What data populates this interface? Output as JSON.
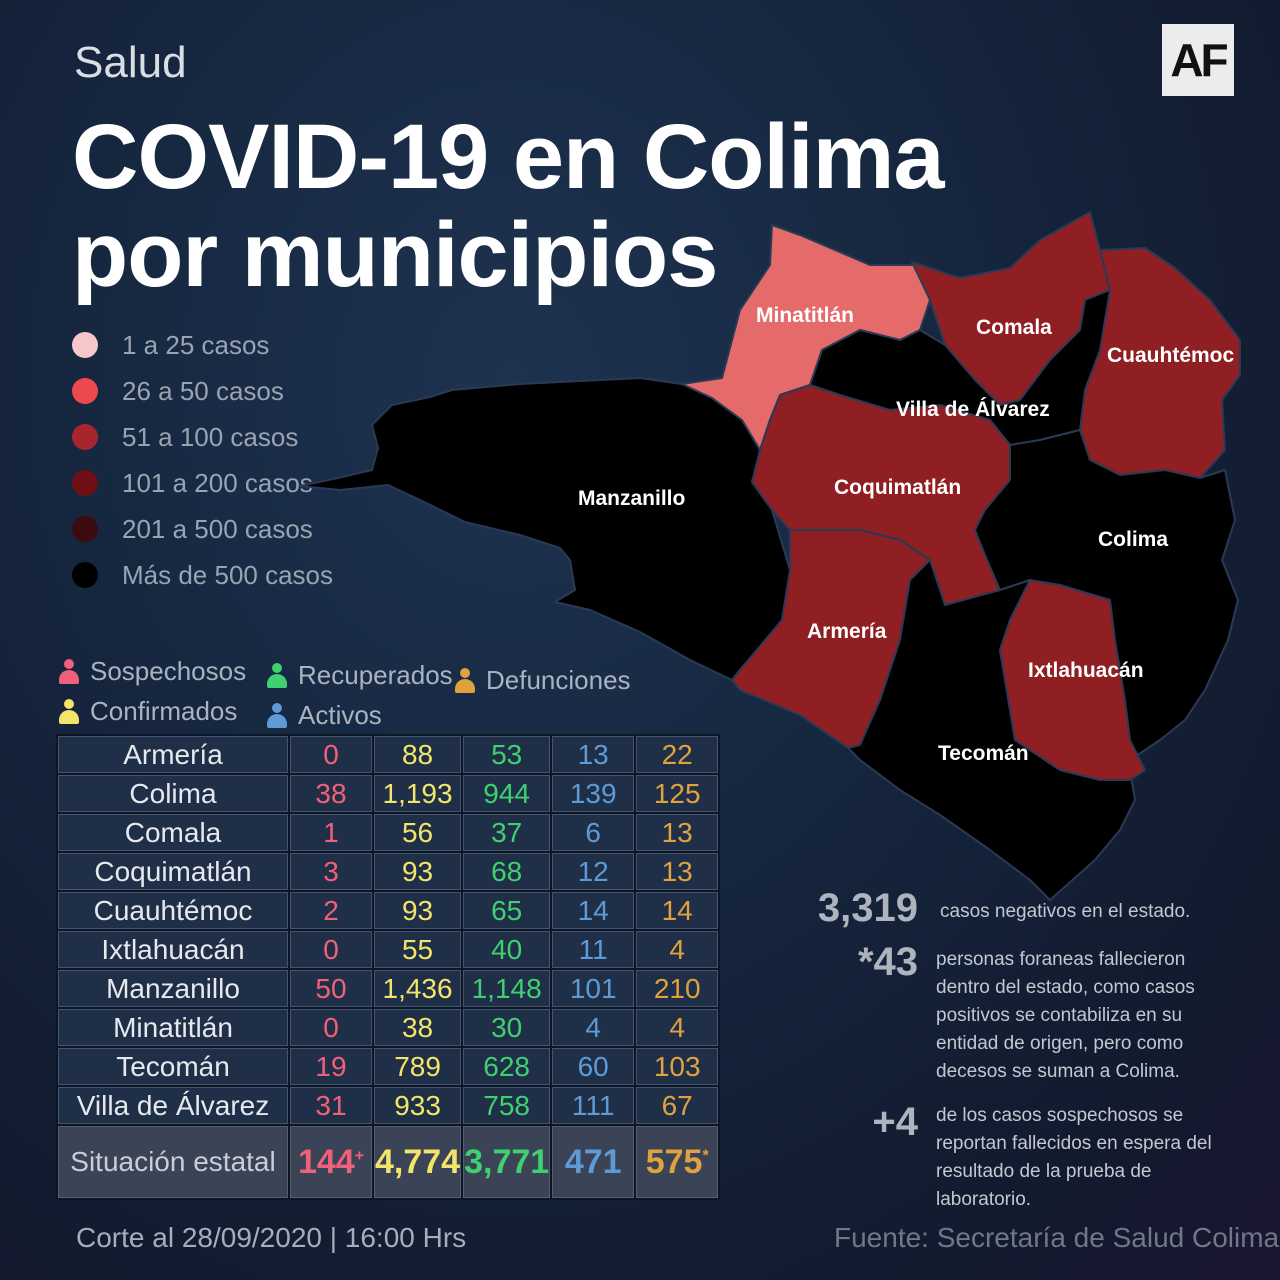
{
  "header": {
    "section": "Salud",
    "logo": "AF",
    "title_line1": "COVID-19 en Colima",
    "title_line2": "por municipios"
  },
  "legend": [
    {
      "label": "1 a 25 casos",
      "color": "#f7c6c9"
    },
    {
      "label": "26 a  50 casos",
      "color": "#ee4a4e"
    },
    {
      "label": "51 a  100 casos",
      "color": "#a7262d"
    },
    {
      "label": "101 a  200 casos",
      "color": "#6e0f14"
    },
    {
      "label": "201  a  500 casos",
      "color": "#3a0c10"
    },
    {
      "label": "Más de 500 casos",
      "color": "#000000"
    }
  ],
  "map": {
    "colors": {
      "light": "#e56b6a",
      "red": "#8f1f22",
      "black": "#000000",
      "border": "#2a3a55"
    },
    "labels": {
      "minatitlan": "Minatitlán",
      "comala": "Comala",
      "cuauhtemoc": "Cuauhtémoc",
      "villa": "Villa de Álvarez",
      "manzanillo": "Manzanillo",
      "coquimatlan": "Coquimatlán",
      "colima": "Colima",
      "armeria": "Armería",
      "ixtlahuacan": "Ixtlahuacán",
      "tecoman": "Tecomán"
    }
  },
  "key": {
    "sospechosos": "Sospechosos",
    "confirmados": "Confirmados",
    "recuperados": "Recuperados",
    "activos": "Activos",
    "defunciones": "Defunciones",
    "colors": {
      "sos": "#f0607a",
      "con": "#f3e46a",
      "rec": "#3fd06f",
      "act": "#5e9ad6",
      "def": "#e0a23e"
    }
  },
  "table": {
    "rows": [
      {
        "name": "Armería",
        "sos": "0",
        "con": "88",
        "rec": "53",
        "act": "13",
        "def": "22"
      },
      {
        "name": "Colima",
        "sos": "38",
        "con": "1,193",
        "rec": "944",
        "act": "139",
        "def": "125"
      },
      {
        "name": "Comala",
        "sos": "1",
        "con": "56",
        "rec": "37",
        "act": "6",
        "def": "13"
      },
      {
        "name": "Coquimatlán",
        "sos": "3",
        "con": "93",
        "rec": "68",
        "act": "12",
        "def": "13"
      },
      {
        "name": "Cuauhtémoc",
        "sos": "2",
        "con": "93",
        "rec": "65",
        "act": "14",
        "def": "14"
      },
      {
        "name": "Ixtlahuacán",
        "sos": "0",
        "con": "55",
        "rec": "40",
        "act": "11",
        "def": "4"
      },
      {
        "name": "Manzanillo",
        "sos": "50",
        "con": "1,436",
        "rec": "1,148",
        "act": "101",
        "def": "210"
      },
      {
        "name": "Minatitlán",
        "sos": "0",
        "con": "38",
        "rec": "30",
        "act": "4",
        "def": "4"
      },
      {
        "name": "Tecomán",
        "sos": "19",
        "con": "789",
        "rec": "628",
        "act": "60",
        "def": "103"
      },
      {
        "name": "Villa de Álvarez",
        "sos": "31",
        "con": "933",
        "rec": "758",
        "act": "111",
        "def": "67"
      }
    ],
    "total": {
      "name": "Situación estatal",
      "sos": "144",
      "sos_mark": "+",
      "con": "4,774",
      "rec": "3,771",
      "act": "471",
      "def": "575",
      "def_mark": "*"
    }
  },
  "stats": {
    "negativos_num": "3,319",
    "negativos_txt": "casos negativos en el estado.",
    "foraneas_num": "*43",
    "foraneas_txt": "personas foraneas fallecieron dentro del estado, como casos positivos se contabiliza en su entidad de origen, pero como decesos se suman a Colima.",
    "sospechosos_num": "+4",
    "sospechosos_txt": "de los casos sospechosos se reportan fallecidos en espera del resultado de la prueba de laboratorio."
  },
  "footer": {
    "corte": "Corte al 28/09/2020 | 16:00 Hrs",
    "fuente": "Fuente: Secretaría de Salud Colima"
  }
}
